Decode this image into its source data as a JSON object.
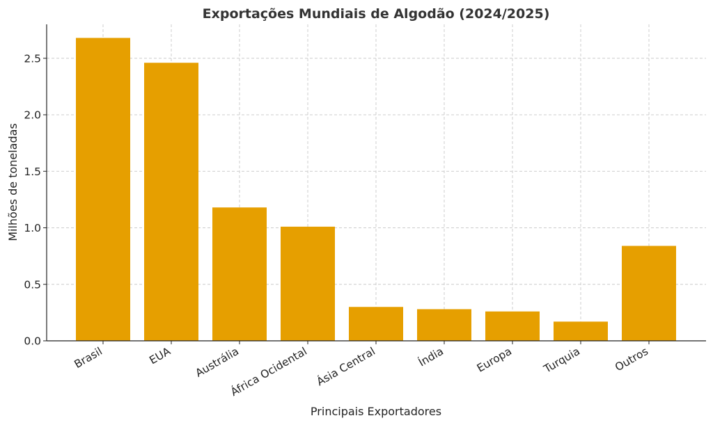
{
  "chart_data": {
    "type": "bar",
    "title": "Exportações Mundiais de Algodão (2024/2025)",
    "xlabel": "Principais Exportadores",
    "ylabel": "Milhões de toneladas",
    "categories": [
      "Brasil",
      "EUA",
      "Austrália",
      "África Ocidental",
      "Ásia Central",
      "Índia",
      "Europa",
      "Turquia",
      "Outros"
    ],
    "values": [
      2.68,
      2.46,
      1.18,
      1.01,
      0.3,
      0.28,
      0.26,
      0.17,
      0.84
    ],
    "ylim": [
      0,
      2.8
    ],
    "yticks": [
      "0.0",
      "0.5",
      "1.0",
      "1.5",
      "2.0",
      "2.5"
    ],
    "bar_color": "#E69F00",
    "grid": true,
    "legend": "none"
  }
}
